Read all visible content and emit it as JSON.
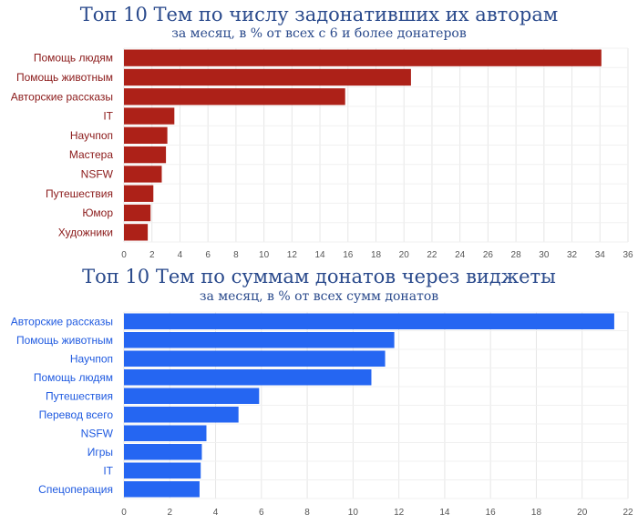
{
  "chart_data": [
    {
      "type": "bar",
      "orientation": "horizontal",
      "title": "Топ 10 Тем по числу задонативших их авторам",
      "subtitle": "за месяц, в % от всех с 6 и более донатеров",
      "categories": [
        "Помощь людям",
        "Помощь животным",
        "Авторские рассказы",
        "IT",
        "Научпоп",
        "Мастера",
        "NSFW",
        "Путешествия",
        "Юмор",
        "Художники"
      ],
      "values": [
        34.1,
        20.5,
        15.8,
        3.6,
        3.1,
        3.0,
        2.7,
        2.1,
        1.9,
        1.7
      ],
      "xlim": [
        0,
        36
      ],
      "xticks": [
        0,
        2,
        4,
        6,
        8,
        10,
        12,
        14,
        16,
        18,
        20,
        22,
        24,
        26,
        28,
        30,
        32,
        34,
        36
      ],
      "grid": true,
      "bar_color": "#ad2118",
      "label_color": "#8b1a1a"
    },
    {
      "type": "bar",
      "orientation": "horizontal",
      "title": "Топ 10 Тем по суммам донатов через виджеты",
      "subtitle": "за месяц, в % от всех сумм донатов",
      "categories": [
        "Авторские рассказы",
        "Помощь животным",
        "Научпоп",
        "Помощь людям",
        "Путешествия",
        "Перевод всего",
        "NSFW",
        "Игры",
        "IT",
        "Спецоперация"
      ],
      "values": [
        21.4,
        11.8,
        11.4,
        10.8,
        5.9,
        5.0,
        3.6,
        3.4,
        3.35,
        3.3
      ],
      "xlim": [
        0,
        22
      ],
      "xticks": [
        0,
        2,
        4,
        6,
        8,
        10,
        12,
        14,
        16,
        18,
        20,
        22
      ],
      "grid": true,
      "bar_color": "#2566f2",
      "label_color": "#1f5ae0"
    }
  ]
}
